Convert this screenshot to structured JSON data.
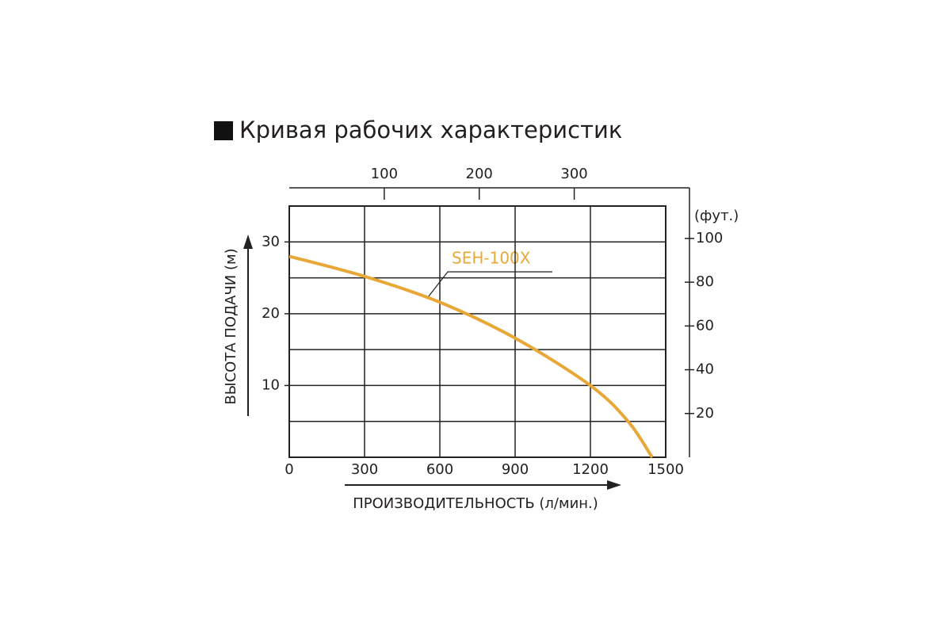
{
  "chart_data": {
    "type": "line",
    "title": "Кривая рабочих характеристик",
    "x_label": "ПРОИЗВОДИТЕЛЬНОСТЬ (л/мин.)",
    "y_label": "ВЫСОТА ПОДАЧИ (м)",
    "y2_label": "(фут.)",
    "x": [
      0,
      300,
      600,
      900,
      1200,
      1350,
      1446
    ],
    "series": [
      {
        "name": "SEH-100X",
        "color": "#e8a838",
        "values": [
          28,
          25.2,
          21.6,
          16.6,
          10,
          5,
          0
        ]
      }
    ],
    "xlim": [
      0,
      1500
    ],
    "xticks": [
      0,
      300,
      600,
      900,
      1200,
      1500
    ],
    "ylim": [
      0,
      35
    ],
    "yticks": [
      10,
      20,
      30
    ],
    "ygrid": [
      5,
      10,
      15,
      20,
      25,
      30
    ],
    "x2lim": [
      0,
      396.3
    ],
    "x2ticks": [
      100,
      200,
      300
    ],
    "y2lim": [
      0,
      114.8
    ],
    "y2ticks": [
      20,
      40,
      60,
      80,
      100
    ],
    "grid": true
  }
}
